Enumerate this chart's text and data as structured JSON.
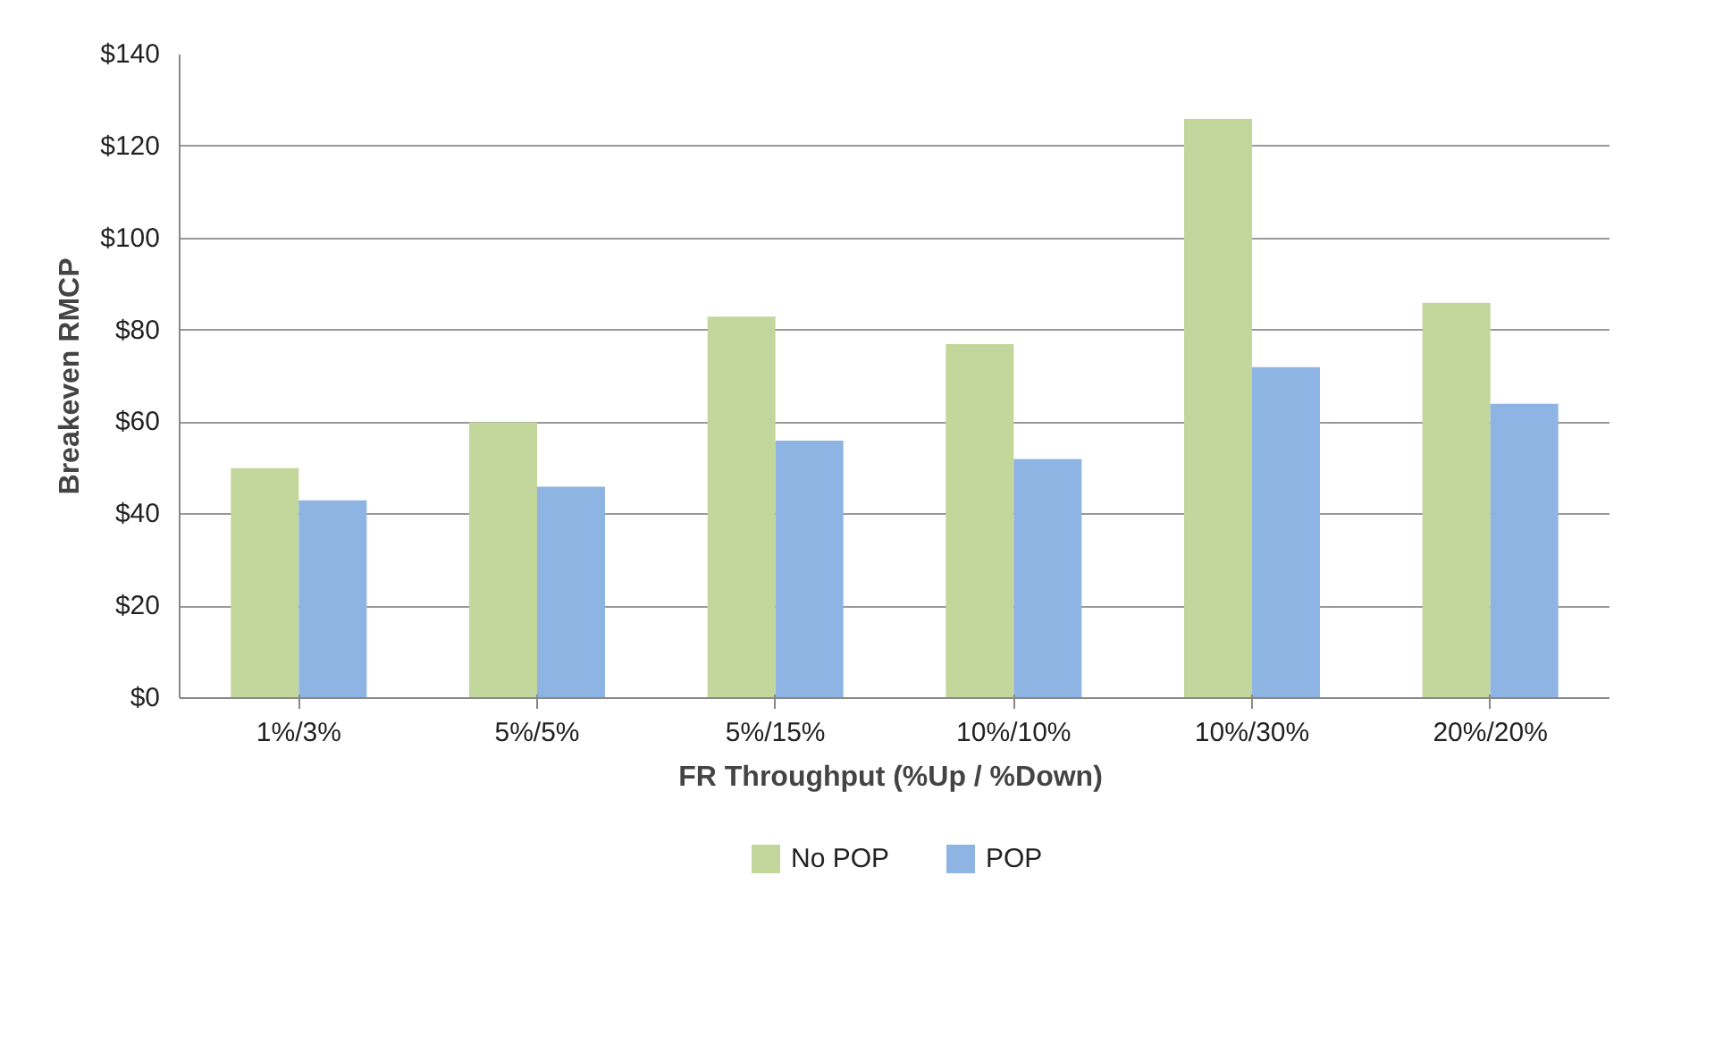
{
  "chart_data": {
    "type": "bar",
    "xlabel": "FR Throughput  (%Up / %Down)",
    "ylabel": "Breakeven RMCP",
    "categories": [
      "1%/3%",
      "5%/5%",
      "5%/15%",
      "10%/10%",
      "10%/30%",
      "20%/20%"
    ],
    "series": [
      {
        "name": "No POP",
        "color": "#c3d69b",
        "values": [
          50,
          60,
          83,
          77,
          126,
          86
        ]
      },
      {
        "name": "POP",
        "color": "#8eb4e3",
        "values": [
          43,
          46,
          56,
          52,
          72,
          64
        ]
      }
    ],
    "ylim": [
      0,
      140
    ],
    "yticks": [
      {
        "value": 0,
        "label": "$0"
      },
      {
        "value": 20,
        "label": "$20"
      },
      {
        "value": 40,
        "label": "$40"
      },
      {
        "value": 60,
        "label": "$60"
      },
      {
        "value": 80,
        "label": "$80"
      },
      {
        "value": 100,
        "label": "$100"
      },
      {
        "value": 120,
        "label": "$120"
      },
      {
        "value": 140,
        "label": "$140"
      }
    ],
    "grid": "y",
    "legend": "bottom"
  }
}
